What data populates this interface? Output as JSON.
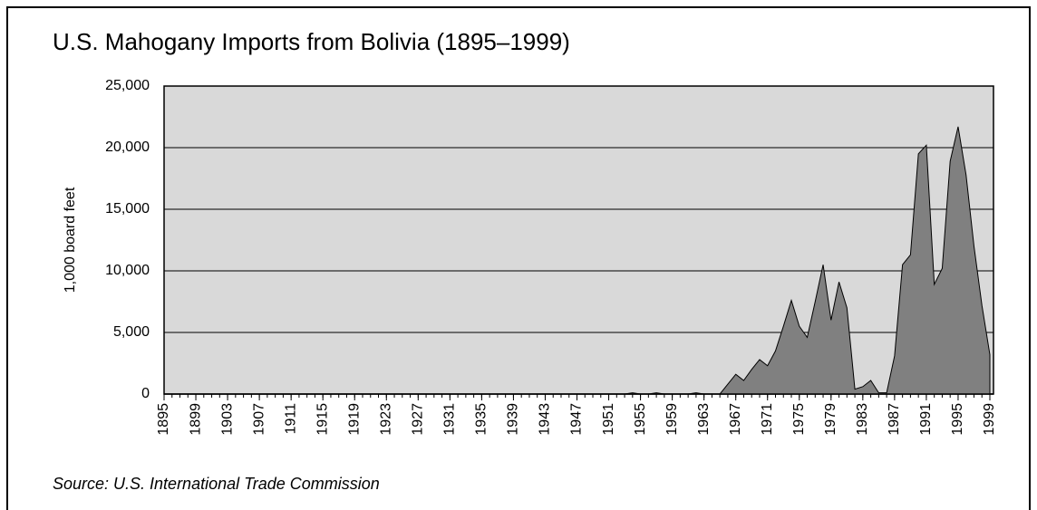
{
  "chart_data": {
    "type": "area",
    "title": "U.S. Mahogany Imports from Bolivia (1895–1999)",
    "ylabel": "1,000 board feet",
    "source": "Source: U.S. International Trade Commission",
    "color": "#808080",
    "x": [
      1895,
      1896,
      1897,
      1898,
      1899,
      1900,
      1901,
      1902,
      1903,
      1904,
      1905,
      1906,
      1907,
      1908,
      1909,
      1910,
      1911,
      1912,
      1913,
      1914,
      1915,
      1916,
      1917,
      1918,
      1919,
      1920,
      1921,
      1922,
      1923,
      1924,
      1925,
      1926,
      1927,
      1928,
      1929,
      1930,
      1931,
      1932,
      1933,
      1934,
      1935,
      1936,
      1937,
      1938,
      1939,
      1940,
      1941,
      1942,
      1943,
      1944,
      1945,
      1946,
      1947,
      1948,
      1949,
      1950,
      1951,
      1952,
      1953,
      1954,
      1955,
      1956,
      1957,
      1958,
      1959,
      1960,
      1961,
      1962,
      1963,
      1964,
      1965,
      1966,
      1967,
      1968,
      1969,
      1970,
      1971,
      1972,
      1973,
      1974,
      1975,
      1976,
      1977,
      1978,
      1979,
      1980,
      1981,
      1982,
      1983,
      1984,
      1985,
      1986,
      1987,
      1988,
      1989,
      1990,
      1991,
      1992,
      1993,
      1994,
      1995,
      1996,
      1997,
      1998,
      1999
    ],
    "values": [
      0,
      0,
      0,
      0,
      0,
      0,
      0,
      0,
      0,
      0,
      0,
      0,
      0,
      0,
      0,
      0,
      0,
      0,
      0,
      0,
      0,
      0,
      0,
      0,
      0,
      0,
      0,
      0,
      0,
      0,
      0,
      0,
      0,
      0,
      0,
      0,
      0,
      0,
      0,
      0,
      0,
      0,
      0,
      0,
      0,
      0,
      0,
      0,
      0,
      0,
      0,
      0,
      0,
      0,
      0,
      0,
      0,
      0,
      0,
      100,
      0,
      0,
      100,
      0,
      0,
      0,
      0,
      100,
      0,
      0,
      0,
      800,
      1600,
      1100,
      2000,
      2800,
      2300,
      3500,
      5500,
      7600,
      5500,
      4600,
      7500,
      10500,
      6000,
      9100,
      7000,
      400,
      600,
      1100,
      100,
      100,
      3100,
      10500,
      11300,
      19500,
      20200,
      8900,
      10200,
      18900,
      21700,
      17800,
      12000,
      7200,
      3200
    ],
    "xlim": [
      1895,
      1999
    ],
    "xticks": [
      1895,
      1899,
      1903,
      1907,
      1911,
      1915,
      1919,
      1923,
      1927,
      1931,
      1935,
      1939,
      1943,
      1947,
      1951,
      1955,
      1959,
      1963,
      1967,
      1971,
      1975,
      1979,
      1983,
      1987,
      1991,
      1995,
      1999
    ],
    "ylim": [
      0,
      25000
    ],
    "yticks": [
      0,
      {
        "value": 5000,
        "label": "5,000"
      },
      {
        "value": 10000,
        "label": "10,000"
      },
      {
        "value": 15000,
        "label": "15,000"
      },
      {
        "value": 20000,
        "label": "20,000"
      },
      {
        "value": 25000,
        "label": "25,000"
      }
    ],
    "grid": true
  }
}
